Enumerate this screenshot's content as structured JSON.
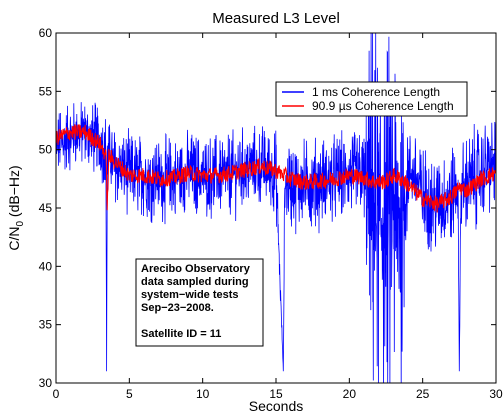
{
  "chart_data": {
    "type": "line",
    "title": "Measured L3 Level",
    "xlabel": "Seconds",
    "ylabel": "C/N",
    "ylabel_subscript": "0",
    "ylabel_unit": " (dB−Hz)",
    "xlim": [
      0,
      30
    ],
    "ylim": [
      30,
      60
    ],
    "xticks": [
      0,
      5,
      10,
      15,
      20,
      25,
      30
    ],
    "yticks": [
      30,
      35,
      40,
      45,
      50,
      55,
      60
    ],
    "grid": false,
    "legend_position": "top-right",
    "series": [
      {
        "name": "1 ms Coherence Length",
        "color": "#0000ff",
        "x": [
          0,
          1,
          2,
          2.5,
          3,
          3.4,
          3.45,
          3.5,
          3.55,
          4,
          5,
          6,
          7,
          8,
          9,
          10,
          11,
          12,
          13,
          14,
          15,
          15.5,
          15.6,
          15.7,
          16,
          17,
          18,
          19,
          20,
          20.9,
          21.0,
          21.5,
          22,
          22.5,
          23,
          23.5,
          24,
          24.5,
          25,
          26,
          27,
          27.4,
          27.5,
          27.6,
          28,
          29,
          29.5,
          30
        ],
        "y_center": [
          50.3,
          51.2,
          51.5,
          51.0,
          50.8,
          50.0,
          31.0,
          49.0,
          49.5,
          48.8,
          47.8,
          47.8,
          47.5,
          47.6,
          48.0,
          47.8,
          47.8,
          47.9,
          48.3,
          48.5,
          48.1,
          31.0,
          47.5,
          47.3,
          47.0,
          47.0,
          47.2,
          47.5,
          47.8,
          48.0,
          47.6,
          45.0,
          43.0,
          44.0,
          44.0,
          43.5,
          48.0,
          47.8,
          46.0,
          45.2,
          46.0,
          47.0,
          31.0,
          46.5,
          47.0,
          48.0,
          48.5,
          49.0
        ],
        "y_spread": [
          2.5,
          2.3,
          2.3,
          2.4,
          2.5,
          2.5,
          0,
          2.5,
          2.5,
          2.6,
          2.8,
          2.8,
          2.8,
          2.8,
          2.8,
          2.8,
          2.8,
          2.8,
          2.8,
          2.8,
          2.8,
          0,
          2.8,
          2.9,
          3.0,
          3.0,
          3.0,
          3.0,
          3.0,
          3.0,
          3.5,
          13.0,
          13.0,
          12.0,
          13.0,
          12.0,
          3.0,
          3.0,
          3.5,
          3.5,
          3.5,
          3.5,
          0,
          3.5,
          3.5,
          3.3,
          3.3,
          3.2
        ]
      },
      {
        "name": "90.9 µs Coherence Length",
        "color": "#ff0000",
        "x": [
          0,
          1,
          2,
          2.5,
          3,
          3.4,
          3.5,
          3.6,
          4,
          5,
          6,
          7,
          8,
          9,
          10,
          11,
          12,
          13,
          14,
          15,
          16,
          17,
          18,
          19,
          20,
          21,
          21.5,
          22,
          22.5,
          23,
          23.5,
          24,
          25,
          26,
          27,
          27.5,
          28,
          29,
          30
        ],
        "y": [
          51.0,
          51.5,
          51.5,
          51.0,
          50.5,
          49.5,
          45.0,
          49.5,
          49.0,
          47.8,
          47.8,
          47.5,
          47.6,
          48.0,
          47.8,
          47.8,
          48.0,
          48.3,
          48.6,
          48.2,
          47.5,
          47.2,
          47.3,
          47.5,
          47.8,
          47.6,
          47.3,
          47.2,
          47.3,
          47.8,
          47.5,
          47.0,
          45.8,
          45.3,
          46.0,
          46.8,
          46.5,
          47.5,
          48.0
        ]
      }
    ],
    "annotation": {
      "lines": [
        "Arecibo Observatory",
        "data sampled during",
        "system−wide tests",
        "Sep−23−2008.",
        "",
        "Satellite ID = 11"
      ]
    }
  }
}
